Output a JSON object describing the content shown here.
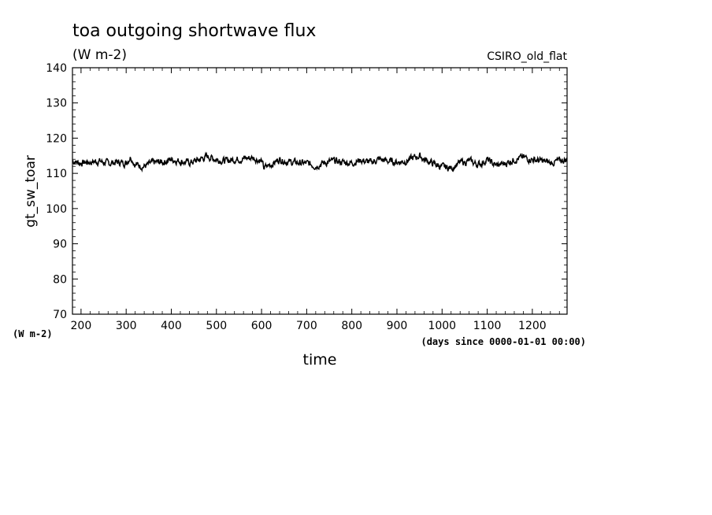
{
  "chart_data": {
    "type": "line",
    "title": "toa outgoing shortwave flux",
    "subtitle": "(W m-2)",
    "tag": "CSIRO_old_flat",
    "ylabel": "gt_sw_toar",
    "yunit": "(W m-2)",
    "xlabel": "time",
    "xunit": "(days since 0000-01-01 00:00)",
    "xlim": [
      181,
      1277
    ],
    "ylim": [
      70,
      140
    ],
    "xticks": [
      200,
      300,
      400,
      500,
      600,
      700,
      800,
      900,
      1000,
      1100,
      1200
    ],
    "xtick_labels": [
      "200",
      "300",
      "400",
      "500",
      "600",
      "700",
      "800",
      "900",
      "1000",
      "1100",
      "1200"
    ],
    "yticks": [
      70,
      80,
      90,
      100,
      110,
      120,
      130,
      140
    ],
    "ytick_labels": [
      "70",
      "80",
      "90",
      "100",
      "110",
      "120",
      "130",
      "140"
    ],
    "grid": false,
    "series": [
      {
        "x": [
          181,
          200,
          220,
          240,
          260,
          280,
          300,
          310,
          320,
          340,
          360,
          380,
          400,
          420,
          440,
          460,
          480,
          500,
          520,
          540,
          560,
          580,
          600,
          605,
          620,
          640,
          660,
          680,
          700,
          720,
          740,
          760,
          780,
          800,
          820,
          840,
          860,
          880,
          900,
          920,
          940,
          950,
          960,
          980,
          1000,
          1020,
          1040,
          1060,
          1080,
          1100,
          1120,
          1140,
          1160,
          1180,
          1200,
          1220,
          1240,
          1260,
          1277
        ],
        "y": [
          113.5,
          113.0,
          113.2,
          113.5,
          112.8,
          113.2,
          113.0,
          114.8,
          112.5,
          112.0,
          113.0,
          113.2,
          114.0,
          113.5,
          113.0,
          113.8,
          114.8,
          114.0,
          113.5,
          114.0,
          114.2,
          114.5,
          113.5,
          111.5,
          112.5,
          114.0,
          113.2,
          113.0,
          112.8,
          112.2,
          113.0,
          113.5,
          113.2,
          113.0,
          113.8,
          113.0,
          114.0,
          113.5,
          113.2,
          113.5,
          114.5,
          115.0,
          114.0,
          112.8,
          111.8,
          111.5,
          113.0,
          113.5,
          112.5,
          113.8,
          112.2,
          112.8,
          114.0,
          114.5,
          114.0,
          113.5,
          113.0,
          113.5,
          114.0
        ]
      }
    ]
  }
}
